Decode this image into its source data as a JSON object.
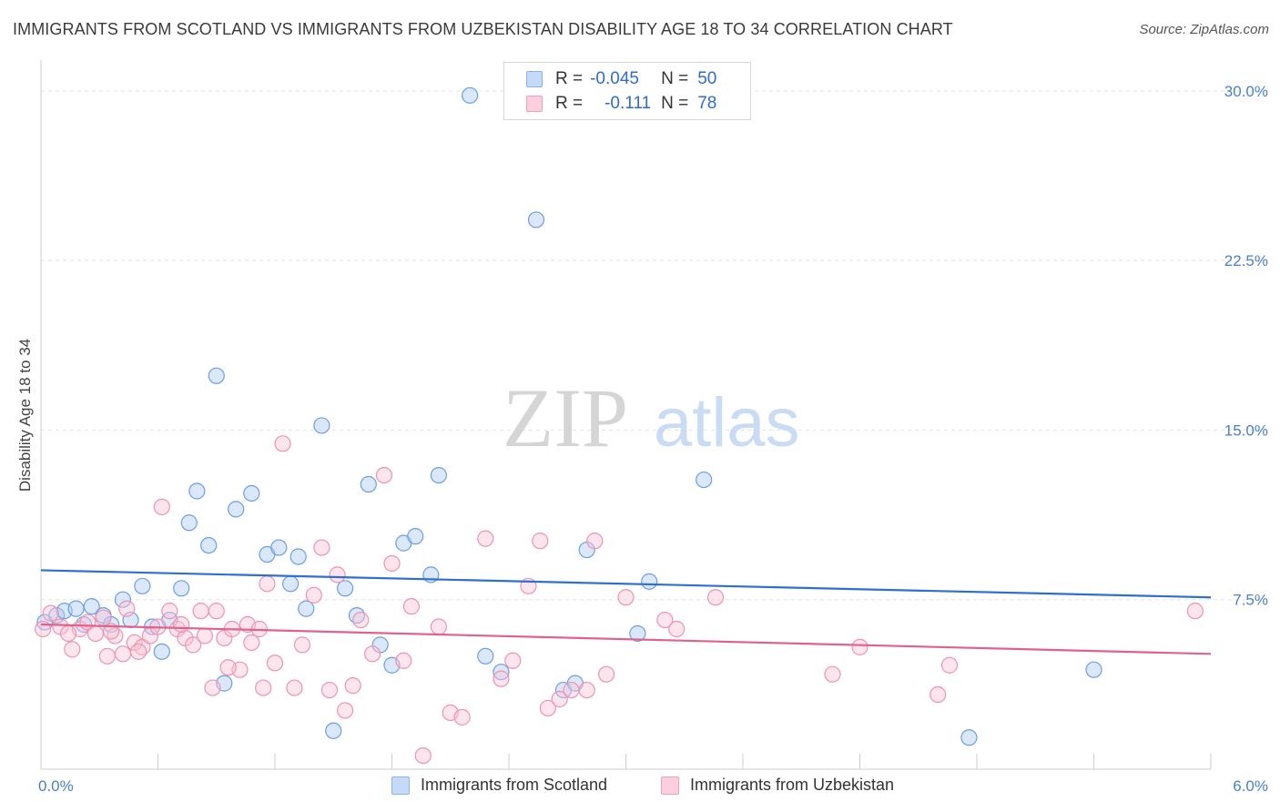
{
  "header": {
    "title": "IMMIGRANTS FROM SCOTLAND VS IMMIGRANTS FROM UZBEKISTAN DISABILITY AGE 18 TO 34 CORRELATION CHART",
    "source": "Source: ZipAtlas.com"
  },
  "watermark": {
    "part1": "ZIP",
    "part2": "atlas"
  },
  "legend": {
    "rows": [
      {
        "r_label": "R =",
        "r_value": "-0.045",
        "n_label": "N =",
        "n_value": "50",
        "color": "#8ab4ef",
        "fill": "#c5daf7"
      },
      {
        "r_label": "R =",
        "r_value": "-0.111",
        "n_label": "N =",
        "n_value": "78",
        "color": "#f0a0b8",
        "fill": "#fbd0dc"
      }
    ]
  },
  "bottom_legend": {
    "scotland": "Immigrants from Scotland",
    "uzbekistan": "Immigrants from Uzbekistan"
  },
  "chart_data": {
    "type": "scatter",
    "ylabel": "Disability Age 18 to 34",
    "xlim": [
      0,
      6
    ],
    "ylim": [
      0,
      31
    ],
    "x_tick_labels": {
      "min": "0.0%",
      "max": "6.0%"
    },
    "y_ticks": [
      {
        "value": 7.5,
        "label": "7.5%"
      },
      {
        "value": 15,
        "label": "15.0%"
      },
      {
        "value": 22.5,
        "label": "22.5%"
      },
      {
        "value": 30,
        "label": "30.0%"
      }
    ],
    "grid": true,
    "series": [
      {
        "name": "Immigrants from Scotland",
        "color": "#6b9ee8",
        "fill": "rgba(173,203,245,0.45)",
        "trend_color": "#2e6fd0",
        "trend": [
          [
            0,
            8.8
          ],
          [
            6,
            7.6
          ]
        ],
        "points": [
          [
            0.02,
            6.5
          ],
          [
            0.08,
            6.8
          ],
          [
            0.12,
            7.0
          ],
          [
            0.18,
            7.1
          ],
          [
            0.22,
            6.4
          ],
          [
            0.26,
            7.2
          ],
          [
            0.32,
            6.8
          ],
          [
            0.36,
            6.4
          ],
          [
            0.42,
            7.5
          ],
          [
            0.46,
            6.6
          ],
          [
            0.52,
            8.1
          ],
          [
            0.57,
            6.3
          ],
          [
            0.62,
            5.2
          ],
          [
            0.66,
            6.6
          ],
          [
            0.72,
            8.0
          ],
          [
            0.76,
            10.9
          ],
          [
            0.8,
            12.3
          ],
          [
            0.86,
            9.9
          ],
          [
            0.9,
            17.4
          ],
          [
            0.94,
            3.8
          ],
          [
            1.0,
            11.5
          ],
          [
            1.08,
            12.2
          ],
          [
            1.16,
            9.5
          ],
          [
            1.22,
            9.8
          ],
          [
            1.28,
            8.2
          ],
          [
            1.32,
            9.4
          ],
          [
            1.36,
            7.1
          ],
          [
            1.44,
            15.2
          ],
          [
            1.5,
            1.7
          ],
          [
            1.56,
            8.0
          ],
          [
            1.62,
            6.8
          ],
          [
            1.68,
            12.6
          ],
          [
            1.74,
            5.5
          ],
          [
            1.8,
            4.6
          ],
          [
            1.86,
            10.0
          ],
          [
            1.92,
            10.3
          ],
          [
            2.0,
            8.6
          ],
          [
            2.04,
            13.0
          ],
          [
            2.2,
            29.8
          ],
          [
            2.28,
            5.0
          ],
          [
            2.36,
            4.3
          ],
          [
            2.54,
            24.3
          ],
          [
            2.68,
            3.5
          ],
          [
            2.74,
            3.8
          ],
          [
            2.8,
            9.7
          ],
          [
            3.06,
            6.0
          ],
          [
            3.12,
            8.3
          ],
          [
            3.4,
            12.8
          ],
          [
            4.76,
            1.4
          ],
          [
            5.4,
            4.4
          ]
        ]
      },
      {
        "name": "Immigrants from Uzbekistan",
        "color": "#ee93b0",
        "fill": "rgba(249,197,213,0.45)",
        "trend_color": "#e0628c",
        "trend": [
          [
            0,
            6.4
          ],
          [
            6,
            5.1
          ]
        ],
        "points": [
          [
            0.01,
            6.2
          ],
          [
            0.05,
            6.9
          ],
          [
            0.1,
            6.3
          ],
          [
            0.16,
            5.3
          ],
          [
            0.2,
            6.2
          ],
          [
            0.24,
            6.5
          ],
          [
            0.28,
            6.0
          ],
          [
            0.32,
            6.7
          ],
          [
            0.34,
            5.0
          ],
          [
            0.38,
            5.9
          ],
          [
            0.42,
            5.1
          ],
          [
            0.44,
            7.1
          ],
          [
            0.48,
            5.6
          ],
          [
            0.52,
            5.4
          ],
          [
            0.56,
            5.9
          ],
          [
            0.6,
            6.3
          ],
          [
            0.62,
            11.6
          ],
          [
            0.66,
            7.0
          ],
          [
            0.7,
            6.2
          ],
          [
            0.74,
            5.8
          ],
          [
            0.78,
            5.5
          ],
          [
            0.82,
            7.0
          ],
          [
            0.84,
            5.9
          ],
          [
            0.88,
            3.6
          ],
          [
            0.9,
            7.0
          ],
          [
            0.94,
            5.8
          ],
          [
            0.98,
            6.2
          ],
          [
            1.02,
            4.4
          ],
          [
            1.06,
            6.4
          ],
          [
            1.08,
            5.6
          ],
          [
            1.14,
            3.6
          ],
          [
            1.16,
            8.2
          ],
          [
            1.2,
            4.7
          ],
          [
            1.24,
            14.4
          ],
          [
            1.3,
            3.6
          ],
          [
            1.34,
            5.5
          ],
          [
            1.4,
            7.7
          ],
          [
            1.44,
            9.8
          ],
          [
            1.48,
            3.5
          ],
          [
            1.52,
            8.6
          ],
          [
            1.56,
            2.6
          ],
          [
            1.6,
            3.7
          ],
          [
            1.64,
            6.6
          ],
          [
            1.7,
            5.1
          ],
          [
            1.76,
            13.0
          ],
          [
            1.8,
            9.1
          ],
          [
            1.86,
            4.8
          ],
          [
            1.9,
            7.2
          ],
          [
            1.96,
            0.6
          ],
          [
            2.04,
            6.3
          ],
          [
            2.1,
            2.5
          ],
          [
            2.16,
            2.3
          ],
          [
            2.28,
            10.2
          ],
          [
            2.36,
            4.0
          ],
          [
            2.42,
            4.8
          ],
          [
            2.5,
            8.1
          ],
          [
            2.56,
            10.1
          ],
          [
            2.6,
            2.7
          ],
          [
            2.66,
            3.1
          ],
          [
            2.72,
            3.5
          ],
          [
            2.8,
            3.5
          ],
          [
            2.84,
            10.1
          ],
          [
            2.9,
            4.2
          ],
          [
            3.0,
            7.6
          ],
          [
            3.2,
            6.6
          ],
          [
            3.26,
            6.2
          ],
          [
            3.46,
            7.6
          ],
          [
            4.06,
            4.2
          ],
          [
            4.2,
            5.4
          ],
          [
            4.6,
            3.3
          ],
          [
            4.66,
            4.6
          ],
          [
            5.92,
            7.0
          ],
          [
            0.14,
            6.0
          ],
          [
            0.36,
            6.1
          ],
          [
            0.5,
            5.2
          ],
          [
            0.72,
            6.4
          ],
          [
            0.96,
            4.5
          ],
          [
            1.12,
            6.2
          ]
        ]
      }
    ]
  }
}
